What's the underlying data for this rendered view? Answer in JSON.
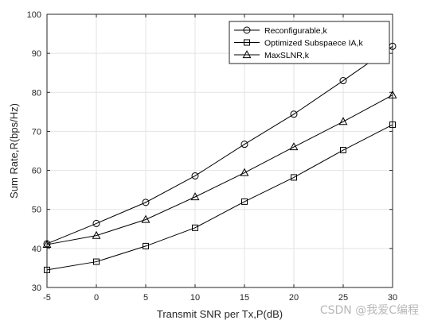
{
  "chart_data": {
    "type": "line",
    "xlabel": "Transmit SNR per Tx,P(dB)",
    "ylabel": "Sum Rate,R(bps/Hz)",
    "xlim": [
      -5,
      30
    ],
    "ylim": [
      30,
      100
    ],
    "xticks": [
      "-5",
      "0",
      "5",
      "10",
      "15",
      "20",
      "25",
      "30"
    ],
    "yticks": [
      "30",
      "40",
      "50",
      "60",
      "70",
      "80",
      "90",
      "100"
    ],
    "grid": true,
    "legend_position": "top-right",
    "x": [
      -5,
      0,
      5,
      10,
      15,
      20,
      25,
      30
    ],
    "series": [
      {
        "name": "Reconfigurable,k",
        "marker": "circle",
        "values": [
          41.2,
          46.4,
          51.8,
          58.6,
          66.7,
          74.4,
          83.0,
          91.8
        ]
      },
      {
        "name": "Optimized Subspaece IA,k",
        "marker": "square",
        "values": [
          34.5,
          36.6,
          40.6,
          45.3,
          52.0,
          58.2,
          65.2,
          71.7
        ]
      },
      {
        "name": "MaxSLNR,k",
        "marker": "triangle",
        "values": [
          41.0,
          43.3,
          47.4,
          53.2,
          59.4,
          66.0,
          72.5,
          79.3
        ]
      }
    ]
  },
  "watermark": "CSDN @我爱C编程"
}
